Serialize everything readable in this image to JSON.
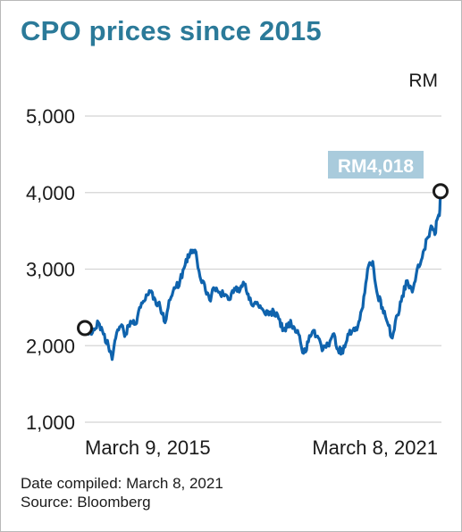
{
  "title": "CPO prices since 2015",
  "footnote": {
    "compiled": "Date compiled: March 8, 2021",
    "source": "Source: Bloomberg"
  },
  "colors": {
    "title": "#2b7a99",
    "line": "#0f63ad",
    "grid": "#d4d4d4",
    "callout_bg": "#a9cbdc",
    "callout_text": "#ffffff",
    "text": "#1a1a1a"
  },
  "chart_data": {
    "type": "line",
    "ylabel": "RM",
    "ylim": [
      1000,
      5000
    ],
    "yticks": [
      1000,
      2000,
      3000,
      4000,
      5000
    ],
    "ytick_labels": [
      "1,000",
      "2,000",
      "3,000",
      "4,000",
      "5,000"
    ],
    "grid": true,
    "x_start_label": "March 9, 2015",
    "x_end_label": "March 8, 2021",
    "x_start_date": "2015-03-09",
    "x_end_date": "2021-03-08",
    "series": [
      {
        "x": [
          "2015-03-09",
          "2015-04-01",
          "2015-05-01",
          "2015-06-01",
          "2015-07-01",
          "2015-08-01",
          "2015-08-24",
          "2015-09-15",
          "2015-10-15",
          "2015-11-15",
          "2015-12-15",
          "2016-01-15",
          "2016-02-15",
          "2016-03-15",
          "2016-04-15",
          "2016-05-15",
          "2016-06-15",
          "2016-07-15",
          "2016-08-15",
          "2016-09-15",
          "2016-10-15",
          "2016-11-15",
          "2016-12-15",
          "2017-01-15",
          "2017-02-15",
          "2017-03-15",
          "2017-04-15",
          "2017-05-15",
          "2017-06-15",
          "2017-07-15",
          "2017-08-15",
          "2017-09-15",
          "2017-10-15",
          "2017-11-15",
          "2017-12-15",
          "2018-01-15",
          "2018-02-15",
          "2018-03-15",
          "2018-04-15",
          "2018-05-15",
          "2018-06-15",
          "2018-07-15",
          "2018-08-15",
          "2018-09-15",
          "2018-10-15",
          "2018-11-15",
          "2018-12-15",
          "2019-01-15",
          "2019-02-15",
          "2019-03-15",
          "2019-04-15",
          "2019-05-15",
          "2019-06-15",
          "2019-07-15",
          "2019-08-15",
          "2019-09-15",
          "2019-10-15",
          "2019-11-15",
          "2019-12-15",
          "2020-01-15",
          "2020-02-15",
          "2020-03-15",
          "2020-04-15",
          "2020-05-15",
          "2020-06-15",
          "2020-07-15",
          "2020-08-15",
          "2020-09-15",
          "2020-10-15",
          "2020-11-15",
          "2020-12-15",
          "2021-01-15",
          "2021-02-01",
          "2021-02-15",
          "2021-03-01",
          "2021-03-08"
        ],
        "values": [
          2230,
          2150,
          2220,
          2300,
          2150,
          2000,
          1820,
          2100,
          2250,
          2150,
          2320,
          2280,
          2500,
          2600,
          2700,
          2600,
          2500,
          2300,
          2600,
          2750,
          2850,
          3050,
          3200,
          3250,
          2900,
          2800,
          2600,
          2750,
          2700,
          2650,
          2600,
          2750,
          2700,
          2800,
          2600,
          2550,
          2500,
          2450,
          2400,
          2450,
          2350,
          2200,
          2300,
          2250,
          2150,
          1900,
          2050,
          2200,
          2100,
          1950,
          2000,
          2150,
          1950,
          1900,
          2150,
          2200,
          2250,
          2500,
          3000,
          3100,
          2650,
          2500,
          2300,
          2100,
          2400,
          2650,
          2850,
          2700,
          3000,
          3150,
          3400,
          3550,
          3450,
          3650,
          3700,
          4018
        ]
      }
    ],
    "start_value": 2230,
    "end_value": 4018,
    "annotations": [
      {
        "text": "RM4,018",
        "x": "2021-03-08",
        "y": 4018
      }
    ]
  }
}
